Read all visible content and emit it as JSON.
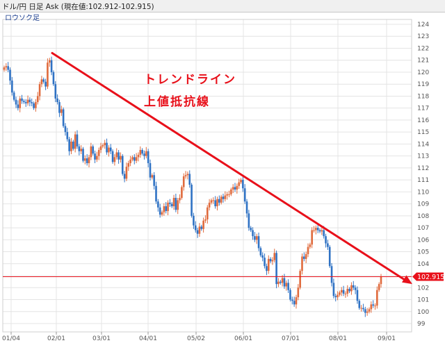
{
  "window": {
    "title": "ドル/円 日足 Ask (現在値:102.912-102.915)",
    "chart_type_label": "ロウソク足"
  },
  "colors": {
    "up_candle": "#e06a3c",
    "down_candle": "#2f72c4",
    "trendline": "#e8101a",
    "price_line": "#e8101a",
    "grid": "#e4e4e4"
  },
  "current_price_label": "102.915",
  "annotations": {
    "line1": "トレンドライン",
    "line2": "上値抵抗線"
  },
  "chart_data": {
    "type": "candlestick",
    "y_ticks": [
      "124",
      "123",
      "122",
      "121",
      "120",
      "119",
      "118",
      "117",
      "116",
      "115",
      "114",
      "113",
      "112",
      "111",
      "110",
      "109",
      "108",
      "107",
      "106",
      "105",
      "104",
      "103",
      "102",
      "101",
      "100",
      "99"
    ],
    "x_ticks": [
      "01/04",
      "02/01",
      "03/01",
      "04/01",
      "05/02",
      "06/01",
      "07/01",
      "08/01",
      "09/01"
    ],
    "ylim": [
      98.5,
      124.8
    ],
    "current_price": 102.915,
    "trendline": {
      "start": {
        "date": "02/01",
        "price": 121.6
      },
      "end": {
        "date": "09/05",
        "price": 102.3
      }
    },
    "series": [
      {
        "close": [
          120.4,
          120.5,
          120.2,
          119.3,
          118.3,
          117.7,
          117.3,
          117.0,
          117.8,
          117.6,
          117.5,
          117.4,
          117.7,
          117.5,
          117.4,
          117.0,
          117.5,
          118.0,
          119.0,
          119.4,
          119.2,
          118.8,
          120.8,
          121.0,
          120.0,
          119.0,
          117.8,
          117.5,
          116.6,
          116.9,
          115.5,
          115.0,
          114.4,
          113.4,
          114.2,
          113.6,
          114.8,
          113.8,
          113.4,
          113.6,
          112.6,
          112.8,
          112.4,
          112.9,
          113.8,
          113.2,
          112.7,
          113.0,
          113.5,
          113.8,
          113.9,
          114.1,
          113.3,
          113.7,
          113.4,
          112.5,
          112.9,
          113.3,
          112.7,
          113.0,
          111.5,
          111.1,
          112.1,
          112.4,
          112.7,
          112.9,
          112.6,
          112.9,
          113.1,
          113.5,
          113.2,
          113.0,
          113.4,
          112.4,
          111.2,
          111.4,
          110.5,
          109.2,
          108.7,
          108.1,
          108.3,
          108.8,
          108.4,
          109.1,
          109.0,
          108.8,
          109.5,
          108.5,
          109.3,
          109.5,
          110.4,
          111.3,
          111.4,
          111.5,
          110.6,
          108.0,
          107.2,
          106.8,
          106.5,
          107.1,
          106.9,
          107.6,
          107.7,
          108.7,
          109.1,
          109.3,
          109.3,
          108.8,
          109.4,
          109.1,
          109.6,
          109.4,
          109.7,
          109.8,
          109.8,
          110.2,
          110.4,
          110.2,
          110.5,
          110.8,
          111.0,
          110.3,
          109.2,
          108.2,
          107.0,
          106.8,
          106.3,
          106.0,
          106.3,
          105.3,
          104.7,
          104.5,
          103.8,
          103.4,
          104.4,
          104.2,
          104.3,
          104.9,
          102.3,
          102.5,
          102.4,
          102.8,
          102.1,
          102.4,
          101.8,
          101.0,
          100.9,
          100.6,
          101.2,
          102.0,
          103.4,
          104.6,
          104.4,
          104.8,
          105.4,
          105.6,
          106.8,
          106.8,
          107.0,
          106.8,
          106.7,
          106.8,
          106.3,
          105.7,
          105.4,
          103.8,
          102.4,
          101.3,
          101.2,
          101.4,
          101.6,
          101.8,
          101.5,
          101.5,
          101.9,
          101.7,
          102.2,
          102.0,
          101.8,
          100.9,
          100.3,
          100.3,
          100.2,
          99.9,
          100.0,
          100.2,
          100.6,
          100.5,
          100.5,
          101.8,
          102.3,
          102.9
        ]
      }
    ]
  }
}
